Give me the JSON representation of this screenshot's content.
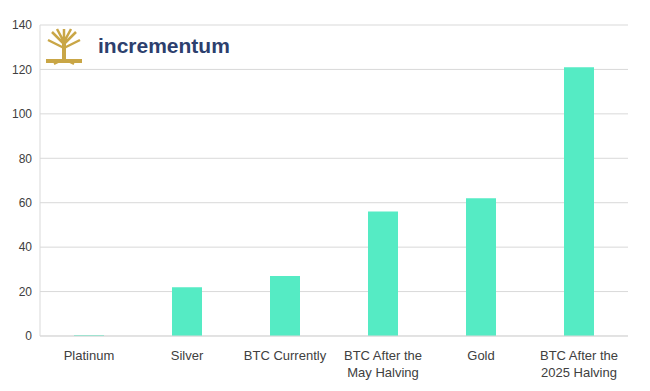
{
  "chart_data": {
    "type": "bar",
    "annotations": [
      "incrementum"
    ],
    "categories": [
      "Platinum",
      "Silver",
      "BTC Currently",
      "BTC After the May Halving",
      "Gold",
      "BTC After the 2025 Halving"
    ],
    "values": [
      0.4,
      22,
      27,
      56,
      62,
      121
    ],
    "color": "#55ebc4",
    "ylim": [
      0,
      140
    ],
    "yticks": [
      0,
      20,
      40,
      60,
      80,
      100,
      120,
      140
    ],
    "grid": true
  }
}
